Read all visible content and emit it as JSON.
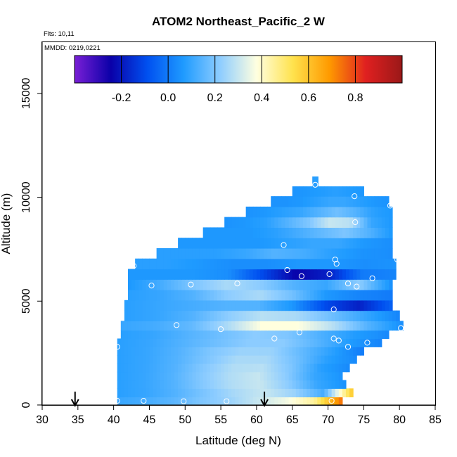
{
  "chart_data": {
    "type": "heatmap",
    "title": "ATOM2 Northeast_Pacific_2 W",
    "flights_label": "Flts: 10,11",
    "mmdd_label": "MMDD: 0219,0221",
    "xlabel": "Latitude (deg N)",
    "ylabel": "Altitude (m)",
    "xlim": [
      30,
      85
    ],
    "ylim": [
      0,
      17500
    ],
    "x_ticks": [
      "30",
      "35",
      "40",
      "45",
      "50",
      "55",
      "60",
      "65",
      "70",
      "75",
      "80",
      "85"
    ],
    "y_ticks": [
      "0",
      "5000",
      "10000",
      "15000"
    ],
    "colorbar_range": [
      -0.4,
      1.0
    ],
    "colorbar_ticks": [
      "-0.2",
      "0.0",
      "0.2",
      "0.4",
      "0.6",
      "0.8"
    ],
    "colors": {
      "scale": [
        "#7a1fd6",
        "#0a00a8",
        "#0050f0",
        "#1f9bff",
        "#8ecdff",
        "#ffffe0",
        "#ffe24d",
        "#ff9a00",
        "#e02020",
        "#9a1818"
      ]
    },
    "arrows_latitude": [
      34.6,
      61.1
    ],
    "layers": [
      {
        "alt": 180,
        "lat_min": 40.5,
        "lat_max": 72.0,
        "values": [
          0.1,
          0.12,
          0.15,
          0.2,
          0.24,
          0.3,
          0.36,
          0.45,
          0.75
        ]
      },
      {
        "alt": 600,
        "lat_min": 40.5,
        "lat_max": 73.5,
        "values": [
          0.08,
          0.1,
          0.14,
          0.2,
          0.26,
          0.3,
          0.24,
          0.12,
          0.6
        ]
      },
      {
        "alt": 1000,
        "lat_min": 40.5,
        "lat_max": 72.5,
        "values": [
          0.08,
          0.1,
          0.14,
          0.21,
          0.27,
          0.3,
          0.22,
          0.1,
          0.05
        ]
      },
      {
        "alt": 1400,
        "lat_min": 40.5,
        "lat_max": 72.0,
        "values": [
          0.08,
          0.1,
          0.14,
          0.21,
          0.27,
          0.3,
          0.22,
          0.1,
          0.05
        ]
      },
      {
        "alt": 1800,
        "lat_min": 40.5,
        "lat_max": 73.0,
        "values": [
          0.08,
          0.1,
          0.14,
          0.21,
          0.27,
          0.28,
          0.2,
          0.08,
          0.03
        ]
      },
      {
        "alt": 2200,
        "lat_min": 40.5,
        "lat_max": 74.0,
        "values": [
          0.08,
          0.1,
          0.14,
          0.2,
          0.26,
          0.26,
          0.18,
          0.08,
          0.03
        ]
      },
      {
        "alt": 2600,
        "lat_min": 40.5,
        "lat_max": 75.0,
        "values": [
          0.08,
          0.1,
          0.14,
          0.2,
          0.24,
          0.24,
          0.16,
          0.08,
          0.0
        ]
      },
      {
        "alt": 3000,
        "lat_min": 40.5,
        "lat_max": 77.5,
        "values": [
          0.08,
          0.1,
          0.14,
          0.18,
          0.22,
          0.22,
          0.15,
          0.07,
          0.02
        ]
      },
      {
        "alt": 3400,
        "lat_min": 41.0,
        "lat_max": 78.5,
        "values": [
          0.08,
          0.1,
          0.14,
          0.18,
          0.22,
          0.2,
          0.13,
          0.07,
          0.03
        ]
      },
      {
        "alt": 3800,
        "lat_min": 41.0,
        "lat_max": 80.5,
        "values": [
          0.1,
          0.12,
          0.16,
          0.26,
          0.38,
          0.38,
          0.28,
          0.14,
          0.04
        ]
      },
      {
        "alt": 4300,
        "lat_min": 41.5,
        "lat_max": 80.0,
        "values": [
          0.08,
          0.1,
          0.14,
          0.22,
          0.28,
          0.26,
          0.18,
          0.1,
          0.02
        ]
      },
      {
        "alt": 4800,
        "lat_min": 41.5,
        "lat_max": 79.0,
        "values": [
          0.08,
          0.1,
          0.12,
          0.14,
          0.14,
          0.06,
          -0.1,
          -0.18,
          -0.05
        ]
      },
      {
        "alt": 5300,
        "lat_min": 42.0,
        "lat_max": 79.0,
        "values": [
          0.08,
          0.1,
          0.14,
          0.22,
          0.26,
          0.18,
          0.06,
          0.02,
          0.0
        ]
      },
      {
        "alt": 5800,
        "lat_min": 42.0,
        "lat_max": 79.0,
        "values": [
          0.06,
          0.12,
          0.2,
          0.26,
          0.22,
          0.14,
          0.1,
          0.22,
          0.04
        ]
      },
      {
        "alt": 6300,
        "lat_min": 42.0,
        "lat_max": 79.5,
        "values": [
          0.06,
          0.06,
          0.06,
          0.04,
          -0.1,
          -0.24,
          -0.18,
          0.0,
          0.02
        ]
      },
      {
        "alt": 6800,
        "lat_min": 43.0,
        "lat_max": 79.5,
        "values": [
          0.08,
          0.08,
          0.06,
          0.04,
          0.04,
          0.06,
          0.06,
          0.04,
          0.05
        ]
      },
      {
        "alt": 7300,
        "lat_min": 46.0,
        "lat_max": 79.0,
        "values": [
          0.08,
          0.08,
          0.08,
          0.1,
          0.14,
          0.12,
          0.08,
          0.05,
          0.04
        ]
      },
      {
        "alt": 7800,
        "lat_min": 49.0,
        "lat_max": 79.0,
        "values": [
          0.06,
          0.06,
          0.06,
          0.06,
          0.08,
          0.1,
          0.1,
          0.06,
          0.04
        ]
      },
      {
        "alt": 8300,
        "lat_min": 52.5,
        "lat_max": 79.0,
        "values": [
          0.06,
          0.06,
          0.06,
          0.08,
          0.12,
          0.16,
          0.2,
          0.14,
          0.06
        ]
      },
      {
        "alt": 8800,
        "lat_min": 55.5,
        "lat_max": 79.0,
        "values": [
          0.05,
          0.06,
          0.08,
          0.14,
          0.2,
          0.3,
          0.28,
          0.1,
          0.06
        ]
      },
      {
        "alt": 9300,
        "lat_min": 58.5,
        "lat_max": 79.0,
        "values": [
          0.05,
          0.06,
          0.08,
          0.1,
          0.14,
          0.18,
          0.14,
          0.08,
          0.06
        ]
      },
      {
        "alt": 9800,
        "lat_min": 62.0,
        "lat_max": 78.5,
        "values": [
          0.05,
          0.05,
          0.06,
          0.08,
          0.1,
          0.1,
          0.08,
          0.06,
          0.05
        ]
      },
      {
        "alt": 10300,
        "lat_min": 65.0,
        "lat_max": 75.0,
        "values": [
          0.05,
          0.06,
          0.07,
          0.08,
          0.07,
          0.06
        ]
      },
      {
        "alt": 10750,
        "lat_min": 67.8,
        "lat_max": 68.6,
        "values": [
          0.08
        ]
      }
    ],
    "points": [
      {
        "lat": 40.5,
        "alt": 200
      },
      {
        "lat": 44.2,
        "alt": 200
      },
      {
        "lat": 49.8,
        "alt": 180
      },
      {
        "lat": 55.8,
        "alt": 180
      },
      {
        "lat": 70.5,
        "alt": 200
      },
      {
        "lat": 40.5,
        "alt": 2800
      },
      {
        "lat": 48.8,
        "alt": 3850
      },
      {
        "lat": 55.0,
        "alt": 3650
      },
      {
        "lat": 62.5,
        "alt": 3200
      },
      {
        "lat": 66.0,
        "alt": 3500
      },
      {
        "lat": 70.8,
        "alt": 3200
      },
      {
        "lat": 71.5,
        "alt": 3100
      },
      {
        "lat": 72.8,
        "alt": 2800
      },
      {
        "lat": 75.5,
        "alt": 3000
      },
      {
        "lat": 80.2,
        "alt": 3700
      },
      {
        "lat": 45.3,
        "alt": 5750
      },
      {
        "lat": 50.8,
        "alt": 5800
      },
      {
        "lat": 57.3,
        "alt": 5850
      },
      {
        "lat": 70.8,
        "alt": 4600
      },
      {
        "lat": 72.8,
        "alt": 5850
      },
      {
        "lat": 74.0,
        "alt": 5700
      },
      {
        "lat": 76.2,
        "alt": 6100
      },
      {
        "lat": 42.8,
        "alt": 6700
      },
      {
        "lat": 64.3,
        "alt": 6500
      },
      {
        "lat": 66.3,
        "alt": 6200
      },
      {
        "lat": 70.2,
        "alt": 6300
      },
      {
        "lat": 71.0,
        "alt": 7000
      },
      {
        "lat": 71.2,
        "alt": 6800
      },
      {
        "lat": 79.7,
        "alt": 7000
      },
      {
        "lat": 63.8,
        "alt": 7700
      },
      {
        "lat": 73.8,
        "alt": 8800
      },
      {
        "lat": 68.2,
        "alt": 10600
      },
      {
        "lat": 73.7,
        "alt": 10050
      },
      {
        "lat": 78.7,
        "alt": 9600
      }
    ],
    "grid": false
  }
}
